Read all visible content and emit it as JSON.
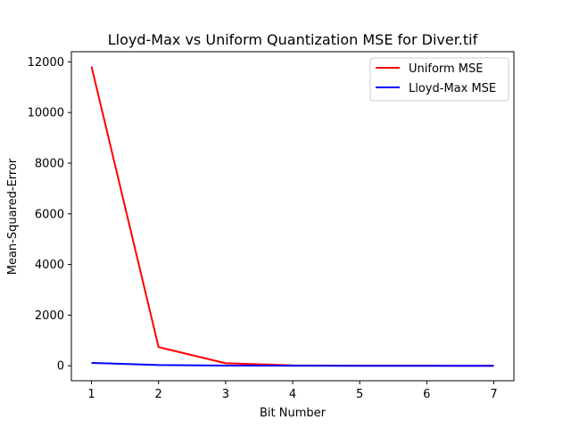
{
  "chart_data": {
    "type": "line",
    "title": "Lloyd-Max vs Uniform Quantization MSE for Diver.tif",
    "xlabel": "Bit Number",
    "ylabel": "Mean-Squared-Error",
    "x": [
      1,
      2,
      3,
      4,
      5,
      6,
      7
    ],
    "xlim": [
      0.7,
      7.3
    ],
    "ylim": [
      -590,
      12400
    ],
    "x_ticks": [
      "1",
      "2",
      "3",
      "4",
      "5",
      "6",
      "7"
    ],
    "y_ticks": [
      "0",
      "2000",
      "4000",
      "6000",
      "8000",
      "10000",
      "12000"
    ],
    "grid": false,
    "legend_position": "upper right",
    "series": [
      {
        "name": "Uniform MSE",
        "color": "#ff0000",
        "values": [
          11820,
          740,
          100,
          18,
          5,
          2,
          1
        ]
      },
      {
        "name": "Lloyd-Max MSE",
        "color": "#0000ff",
        "values": [
          115,
          30,
          8,
          3,
          1,
          0.5,
          0.2
        ]
      }
    ]
  }
}
